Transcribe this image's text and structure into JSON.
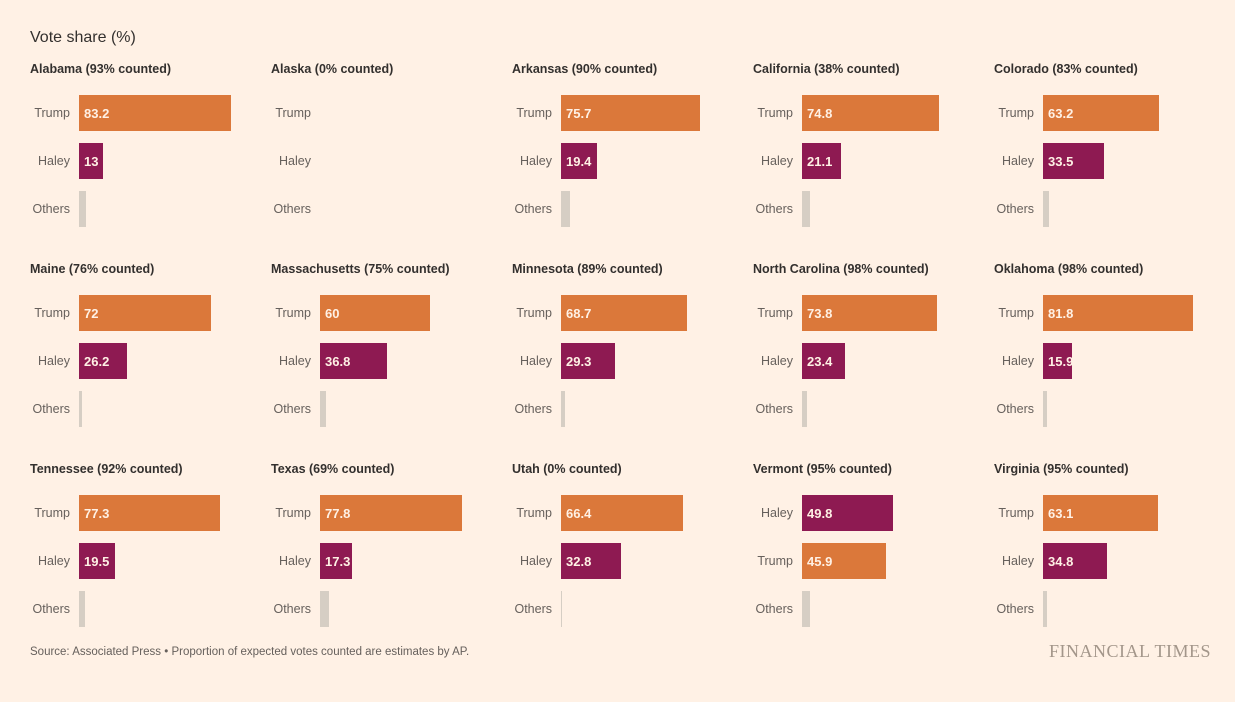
{
  "page": {
    "title": "Vote share (%)"
  },
  "footer": {
    "source": "Source: Associated Press • Proportion of expected votes counted are estimates by AP.",
    "brand": "FINANCIAL TIMES"
  },
  "colors": {
    "background": "#fff1e5",
    "trump": "#db783a",
    "haley": "#8e1a52",
    "others": "#d6cec4",
    "header_text": "#33302e",
    "label_text": "#66605c",
    "value_text": "#fff1e5",
    "brand_text": "#a3968a"
  },
  "chart_data": [
    {
      "type": "bar",
      "orientation": "horizontal",
      "xlim": [
        0,
        100
      ],
      "unit": "%",
      "state": "Alabama",
      "counted_label": "93% counted",
      "title": "Alabama (93% counted)",
      "categories": [
        "Trump",
        "Haley",
        "Others"
      ],
      "values": [
        83.2,
        13,
        3.8
      ],
      "value_labels": [
        "83.2",
        "13",
        ""
      ]
    },
    {
      "type": "bar",
      "orientation": "horizontal",
      "xlim": [
        0,
        100
      ],
      "unit": "%",
      "state": "Alaska",
      "counted_label": "0% counted",
      "title": "Alaska (0% counted)",
      "categories": [
        "Trump",
        "Haley",
        "Others"
      ],
      "values": [
        null,
        null,
        null
      ],
      "value_labels": [
        "",
        "",
        ""
      ]
    },
    {
      "type": "bar",
      "orientation": "horizontal",
      "xlim": [
        0,
        100
      ],
      "unit": "%",
      "state": "Arkansas",
      "counted_label": "90% counted",
      "title": "Arkansas (90% counted)",
      "categories": [
        "Trump",
        "Haley",
        "Others"
      ],
      "values": [
        75.7,
        19.4,
        4.9
      ],
      "value_labels": [
        "75.7",
        "19.4",
        ""
      ]
    },
    {
      "type": "bar",
      "orientation": "horizontal",
      "xlim": [
        0,
        100
      ],
      "unit": "%",
      "state": "California",
      "counted_label": "38% counted",
      "title": "California (38% counted)",
      "categories": [
        "Trump",
        "Haley",
        "Others"
      ],
      "values": [
        74.8,
        21.1,
        4.1
      ],
      "value_labels": [
        "74.8",
        "21.1",
        ""
      ]
    },
    {
      "type": "bar",
      "orientation": "horizontal",
      "xlim": [
        0,
        100
      ],
      "unit": "%",
      "state": "Colorado",
      "counted_label": "83% counted",
      "title": "Colorado (83% counted)",
      "categories": [
        "Trump",
        "Haley",
        "Others"
      ],
      "values": [
        63.2,
        33.5,
        3.3
      ],
      "value_labels": [
        "63.2",
        "33.5",
        ""
      ]
    },
    {
      "type": "bar",
      "orientation": "horizontal",
      "xlim": [
        0,
        100
      ],
      "unit": "%",
      "state": "Maine",
      "counted_label": "76% counted",
      "title": "Maine (76% counted)",
      "categories": [
        "Trump",
        "Haley",
        "Others"
      ],
      "values": [
        72,
        26.2,
        1.8
      ],
      "value_labels": [
        "72",
        "26.2",
        ""
      ]
    },
    {
      "type": "bar",
      "orientation": "horizontal",
      "xlim": [
        0,
        100
      ],
      "unit": "%",
      "state": "Massachusetts",
      "counted_label": "75% counted",
      "title": "Massachusetts (75% counted)",
      "categories": [
        "Trump",
        "Haley",
        "Others"
      ],
      "values": [
        60,
        36.8,
        3.2
      ],
      "value_labels": [
        "60",
        "36.8",
        ""
      ]
    },
    {
      "type": "bar",
      "orientation": "horizontal",
      "xlim": [
        0,
        100
      ],
      "unit": "%",
      "state": "Minnesota",
      "counted_label": "89% counted",
      "title": "Minnesota (89% counted)",
      "categories": [
        "Trump",
        "Haley",
        "Others"
      ],
      "values": [
        68.7,
        29.3,
        2.0
      ],
      "value_labels": [
        "68.7",
        "29.3",
        ""
      ]
    },
    {
      "type": "bar",
      "orientation": "horizontal",
      "xlim": [
        0,
        100
      ],
      "unit": "%",
      "state": "North Carolina",
      "counted_label": "98% counted",
      "title": "North Carolina (98% counted)",
      "categories": [
        "Trump",
        "Haley",
        "Others"
      ],
      "values": [
        73.8,
        23.4,
        2.8
      ],
      "value_labels": [
        "73.8",
        "23.4",
        ""
      ]
    },
    {
      "type": "bar",
      "orientation": "horizontal",
      "xlim": [
        0,
        100
      ],
      "unit": "%",
      "state": "Oklahoma",
      "counted_label": "98% counted",
      "title": "Oklahoma (98% counted)",
      "categories": [
        "Trump",
        "Haley",
        "Others"
      ],
      "values": [
        81.8,
        15.9,
        2.3
      ],
      "value_labels": [
        "81.8",
        "15.9",
        ""
      ]
    },
    {
      "type": "bar",
      "orientation": "horizontal",
      "xlim": [
        0,
        100
      ],
      "unit": "%",
      "state": "Tennessee",
      "counted_label": "92% counted",
      "title": "Tennessee (92% counted)",
      "categories": [
        "Trump",
        "Haley",
        "Others"
      ],
      "values": [
        77.3,
        19.5,
        3.2
      ],
      "value_labels": [
        "77.3",
        "19.5",
        ""
      ]
    },
    {
      "type": "bar",
      "orientation": "horizontal",
      "xlim": [
        0,
        100
      ],
      "unit": "%",
      "state": "Texas",
      "counted_label": "69% counted",
      "title": "Texas (69% counted)",
      "categories": [
        "Trump",
        "Haley",
        "Others"
      ],
      "values": [
        77.8,
        17.3,
        4.9
      ],
      "value_labels": [
        "77.8",
        "17.3",
        ""
      ]
    },
    {
      "type": "bar",
      "orientation": "horizontal",
      "xlim": [
        0,
        100
      ],
      "unit": "%",
      "state": "Utah",
      "counted_label": "0% counted",
      "title": "Utah (0% counted)",
      "categories": [
        "Trump",
        "Haley",
        "Others"
      ],
      "values": [
        66.4,
        32.8,
        0.8
      ],
      "value_labels": [
        "66.4",
        "32.8",
        ""
      ]
    },
    {
      "type": "bar",
      "orientation": "horizontal",
      "xlim": [
        0,
        100
      ],
      "unit": "%",
      "state": "Vermont",
      "counted_label": "95% counted",
      "title": "Vermont (95% counted)",
      "categories": [
        "Haley",
        "Trump",
        "Others"
      ],
      "values": [
        49.8,
        45.9,
        4.3
      ],
      "value_labels": [
        "49.8",
        "45.9",
        ""
      ]
    },
    {
      "type": "bar",
      "orientation": "horizontal",
      "xlim": [
        0,
        100
      ],
      "unit": "%",
      "state": "Virginia",
      "counted_label": "95% counted",
      "title": "Virginia (95% counted)",
      "categories": [
        "Trump",
        "Haley",
        "Others"
      ],
      "values": [
        63.1,
        34.8,
        2.1
      ],
      "value_labels": [
        "63.1",
        "34.8",
        ""
      ]
    }
  ]
}
